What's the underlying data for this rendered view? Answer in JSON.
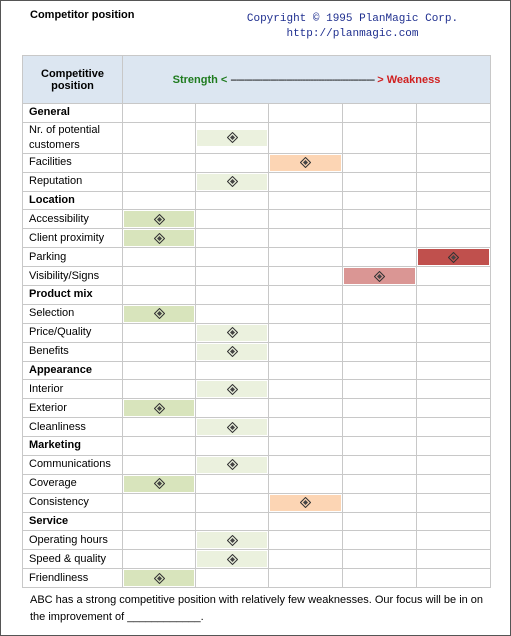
{
  "title": "Competitor position",
  "copyright": [
    "Copyright © 1995 PlanMagic Corp.",
    "http://planmagic.com"
  ],
  "header": {
    "label": "Competitive position",
    "strength": "Strength <",
    "dashes": "------------------------------------------------------",
    "weakness": "> Weakness"
  },
  "scale_colors": [
    "#d8e4bc",
    "#ebf1de",
    "#fcd5b4",
    "#da9694",
    "#c0504d"
  ],
  "rows": [
    {
      "label": "General",
      "section": true
    },
    {
      "label": "Nr. of potential customers",
      "position": 2
    },
    {
      "label": "Facilities",
      "position": 3
    },
    {
      "label": "Reputation",
      "position": 2
    },
    {
      "label": "Location",
      "section": true
    },
    {
      "label": "Accessibility",
      "position": 1
    },
    {
      "label": "Client proximity",
      "position": 1
    },
    {
      "label": "Parking",
      "position": 5
    },
    {
      "label": "Visibility/Signs",
      "position": 4
    },
    {
      "label": "Product mix",
      "section": true
    },
    {
      "label": "Selection",
      "position": 1
    },
    {
      "label": "Price/Quality",
      "position": 2
    },
    {
      "label": "Benefits",
      "position": 2
    },
    {
      "label": "Appearance",
      "section": true
    },
    {
      "label": "Interior",
      "position": 2
    },
    {
      "label": "Exterior",
      "position": 1
    },
    {
      "label": "Cleanliness",
      "position": 2
    },
    {
      "label": "Marketing",
      "section": true
    },
    {
      "label": "Communications",
      "position": 2
    },
    {
      "label": "Coverage",
      "position": 1
    },
    {
      "label": "Consistency",
      "position": 3
    },
    {
      "label": "Service",
      "section": true
    },
    {
      "label": "Operating hours",
      "position": 2
    },
    {
      "label": "Speed & quality",
      "position": 2
    },
    {
      "label": "Friendliness",
      "position": 1
    }
  ],
  "footer": "ABC has a strong competitive position with relatively few weaknesses. Our focus will be in on the improvement of ____________."
}
